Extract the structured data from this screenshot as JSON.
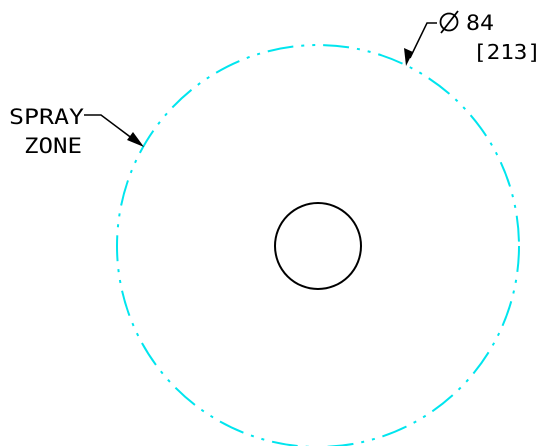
{
  "drawing": {
    "spray_zone_label_line1": "SPRAY",
    "spray_zone_label_line2": "ZONE",
    "diameter_symbol": "Ø",
    "diameter_value": "84",
    "diameter_metric": "[213]"
  },
  "colors": {
    "spray_zone": "#00e5ee",
    "linework": "#000000",
    "background": "#ffffff"
  },
  "icons": {
    "diameter": "diameter-symbol-icon",
    "leader_arrow": "arrowhead-icon"
  }
}
